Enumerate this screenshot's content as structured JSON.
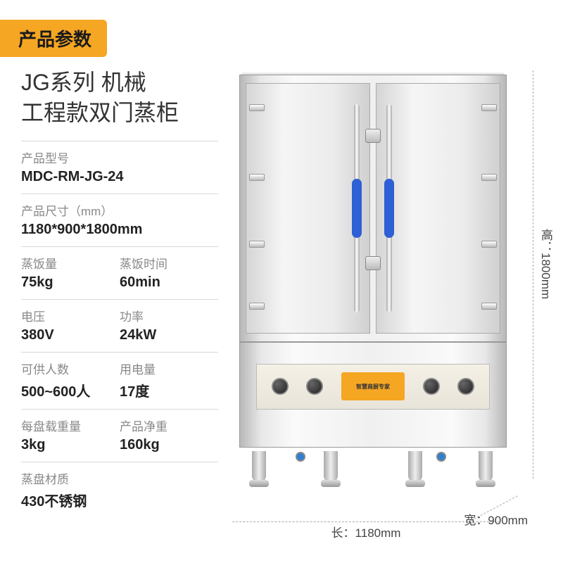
{
  "header": {
    "badge": "产品参数"
  },
  "title": {
    "line1": "JG系列 机械",
    "line2": "工程款双门蒸柜"
  },
  "specs": {
    "model": {
      "label": "产品型号",
      "value": "MDC-RM-JG-24"
    },
    "size": {
      "label": "产品尺寸（mm）",
      "value": "1180*900*1800mm"
    },
    "rice_amount": {
      "label": "蒸饭量",
      "value": "75kg"
    },
    "rice_time": {
      "label": "蒸饭时间",
      "value": "60min"
    },
    "voltage": {
      "label": "电压",
      "value": "380V"
    },
    "power": {
      "label": "功率",
      "value": "24kW"
    },
    "capacity": {
      "label": "可供人数",
      "value": "500~600人"
    },
    "electricity": {
      "label": "用电量",
      "value": "17度"
    },
    "tray_load": {
      "label": "每盘载重量",
      "value": "3kg"
    },
    "net_weight": {
      "label": "产品净重",
      "value": "160kg"
    },
    "tray_material": {
      "label": "蒸盘材质",
      "value": "430不锈钢"
    }
  },
  "dimensions": {
    "height": "高：1800mm",
    "width": "长：1180mm",
    "depth": "宽：900mm"
  },
  "panel_label": "智慧商厨专家",
  "colors": {
    "accent": "#f5a623",
    "handle_grip": "#2e5fd4",
    "text_label": "#888888",
    "text_value": "#222222",
    "divider": "#d8d8d8",
    "steel_light": "#f5f5f5",
    "steel_dark": "#b8b8b8",
    "background": "#ffffff"
  },
  "typography": {
    "badge_fontsize": 26,
    "title_fontsize": 32,
    "label_fontsize": 17,
    "value_fontsize": 20,
    "dimension_fontsize": 17
  },
  "product": {
    "type": "double-door-steam-cabinet",
    "doors": 2,
    "hinges_per_door": 4,
    "latches": 2,
    "knobs": 4,
    "legs": 4,
    "faucets": 2
  }
}
